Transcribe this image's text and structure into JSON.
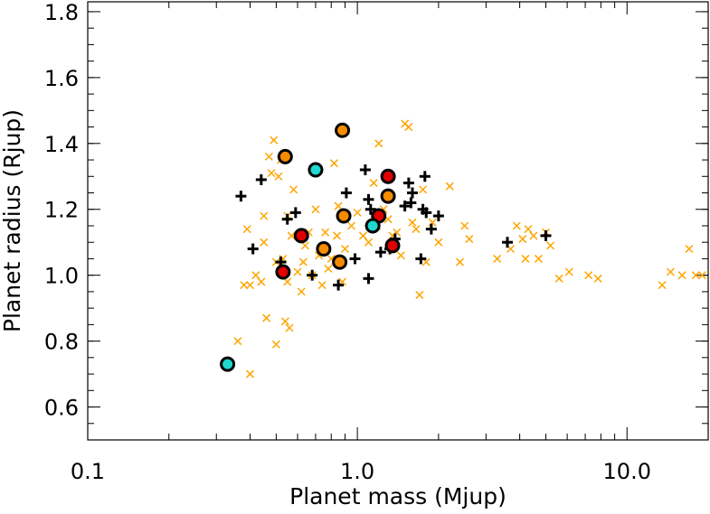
{
  "chart_data": {
    "type": "scatter",
    "title": "",
    "xlabel": "Planet mass (Mjup)",
    "ylabel": "Planet radius (Rjup)",
    "xscale": "log",
    "xlim": [
      0.1,
      20
    ],
    "ylim": [
      0.5,
      1.83
    ],
    "x_ticks": [
      {
        "value": 0.1,
        "label": "0.1"
      },
      {
        "value": 1.0,
        "label": "1.0"
      },
      {
        "value": 10.0,
        "label": "10.0"
      }
    ],
    "y_ticks": [
      {
        "value": 0.6,
        "label": "0.6"
      },
      {
        "value": 0.8,
        "label": "0.8"
      },
      {
        "value": 1.0,
        "label": "1.0"
      },
      {
        "value": 1.2,
        "label": "1.2"
      },
      {
        "value": 1.4,
        "label": "1.4"
      },
      {
        "value": 1.6,
        "label": "1.6"
      },
      {
        "value": 1.8,
        "label": "1.8"
      }
    ],
    "grid": false,
    "legend": "none",
    "colors": {
      "orange_cross": "#FFA500",
      "black_plus": "#000000",
      "red": "#E00000",
      "orange": "#F58C00",
      "cyan": "#20D8D0"
    },
    "series": [
      {
        "marker": "x",
        "color": "#FFA500",
        "points": [
          [
            0.36,
            0.8
          ],
          [
            0.38,
            0.97
          ],
          [
            0.39,
            1.14
          ],
          [
            0.4,
            0.7
          ],
          [
            0.4,
            0.97
          ],
          [
            0.42,
            1.0
          ],
          [
            0.44,
            0.98
          ],
          [
            0.45,
            1.1
          ],
          [
            0.45,
            1.18
          ],
          [
            0.46,
            0.87
          ],
          [
            0.47,
            1.36
          ],
          [
            0.48,
            1.31
          ],
          [
            0.49,
            1.41
          ],
          [
            0.5,
            0.79
          ],
          [
            0.5,
            1.04
          ],
          [
            0.51,
            1.3
          ],
          [
            0.52,
            1.35
          ],
          [
            0.53,
            1.05
          ],
          [
            0.54,
            0.86
          ],
          [
            0.55,
            1.18
          ],
          [
            0.55,
            0.98
          ],
          [
            0.56,
            0.84
          ],
          [
            0.57,
            1.12
          ],
          [
            0.58,
            1.26
          ],
          [
            0.6,
            1.01
          ],
          [
            0.62,
            0.95
          ],
          [
            0.63,
            1.04
          ],
          [
            0.64,
            1.09
          ],
          [
            0.66,
            1.13
          ],
          [
            0.68,
            1.0
          ],
          [
            0.7,
            1.2
          ],
          [
            0.72,
            1.06
          ],
          [
            0.74,
            0.97
          ],
          [
            0.76,
            1.13
          ],
          [
            0.78,
            1.02
          ],
          [
            0.8,
            1.05
          ],
          [
            0.82,
            1.34
          ],
          [
            0.84,
            1.12
          ],
          [
            0.85,
            1.21
          ],
          [
            0.88,
            0.98
          ],
          [
            0.9,
            1.08
          ],
          [
            0.95,
            1.15
          ],
          [
            1.0,
            1.19
          ],
          [
            1.05,
            1.12
          ],
          [
            1.1,
            1.1
          ],
          [
            1.15,
            1.28
          ],
          [
            1.18,
            1.15
          ],
          [
            1.2,
            1.4
          ],
          [
            1.25,
            1.2
          ],
          [
            1.3,
            1.17
          ],
          [
            1.35,
            1.12
          ],
          [
            1.4,
            1.13
          ],
          [
            1.45,
            1.06
          ],
          [
            1.5,
            1.46
          ],
          [
            1.55,
            1.45
          ],
          [
            1.6,
            1.16
          ],
          [
            1.65,
            1.14
          ],
          [
            1.7,
            0.94
          ],
          [
            1.75,
            1.26
          ],
          [
            1.8,
            1.04
          ],
          [
            1.9,
            1.16
          ],
          [
            2.0,
            1.1
          ],
          [
            2.2,
            1.27
          ],
          [
            2.4,
            1.04
          ],
          [
            2.5,
            1.15
          ],
          [
            2.6,
            1.11
          ],
          [
            3.3,
            1.05
          ],
          [
            3.7,
            1.08
          ],
          [
            3.9,
            1.15
          ],
          [
            4.1,
            1.11
          ],
          [
            4.2,
            1.05
          ],
          [
            4.3,
            1.14
          ],
          [
            4.5,
            1.12
          ],
          [
            4.7,
            1.05
          ],
          [
            5.0,
            1.13
          ],
          [
            5.2,
            1.09
          ],
          [
            5.6,
            0.99
          ],
          [
            6.1,
            1.01
          ],
          [
            7.2,
            1.0
          ],
          [
            7.8,
            0.99
          ],
          [
            13.5,
            0.97
          ],
          [
            14.5,
            1.01
          ],
          [
            16.0,
            1.0
          ],
          [
            17.0,
            1.08
          ],
          [
            18.0,
            1.0
          ],
          [
            19.0,
            1.0
          ]
        ]
      },
      {
        "marker": "+",
        "color": "#000000",
        "points": [
          [
            0.37,
            1.24
          ],
          [
            0.41,
            1.08
          ],
          [
            0.44,
            1.29
          ],
          [
            0.52,
            1.04
          ],
          [
            0.55,
            1.17
          ],
          [
            0.59,
            1.19
          ],
          [
            0.68,
            1.0
          ],
          [
            0.85,
            0.97
          ],
          [
            0.91,
            1.25
          ],
          [
            0.98,
            1.05
          ],
          [
            1.07,
            1.32
          ],
          [
            1.1,
            1.23
          ],
          [
            1.1,
            0.99
          ],
          [
            1.12,
            1.2
          ],
          [
            1.22,
            1.07
          ],
          [
            1.32,
            1.08
          ],
          [
            1.38,
            1.11
          ],
          [
            1.5,
            1.21
          ],
          [
            1.55,
            1.28
          ],
          [
            1.58,
            1.22
          ],
          [
            1.6,
            1.25
          ],
          [
            1.72,
            1.05
          ],
          [
            1.75,
            1.2
          ],
          [
            1.78,
            1.3
          ],
          [
            1.8,
            1.19
          ],
          [
            1.88,
            1.14
          ],
          [
            2.0,
            1.18
          ],
          [
            3.6,
            1.1
          ],
          [
            5.0,
            1.12
          ]
        ]
      },
      {
        "marker": "circle",
        "color": "#E00000",
        "points": [
          [
            0.53,
            1.01
          ],
          [
            0.62,
            1.12
          ],
          [
            1.2,
            1.18
          ],
          [
            1.3,
            1.3
          ],
          [
            1.35,
            1.09
          ]
        ]
      },
      {
        "marker": "circle",
        "color": "#F58C00",
        "points": [
          [
            0.54,
            1.36
          ],
          [
            0.75,
            1.08
          ],
          [
            0.86,
            1.04
          ],
          [
            0.88,
            1.44
          ],
          [
            0.89,
            1.18
          ],
          [
            1.3,
            1.24
          ]
        ]
      },
      {
        "marker": "circle",
        "color": "#20D8D0",
        "points": [
          [
            0.33,
            0.73
          ],
          [
            0.7,
            1.32
          ],
          [
            1.14,
            1.15
          ]
        ]
      }
    ]
  }
}
